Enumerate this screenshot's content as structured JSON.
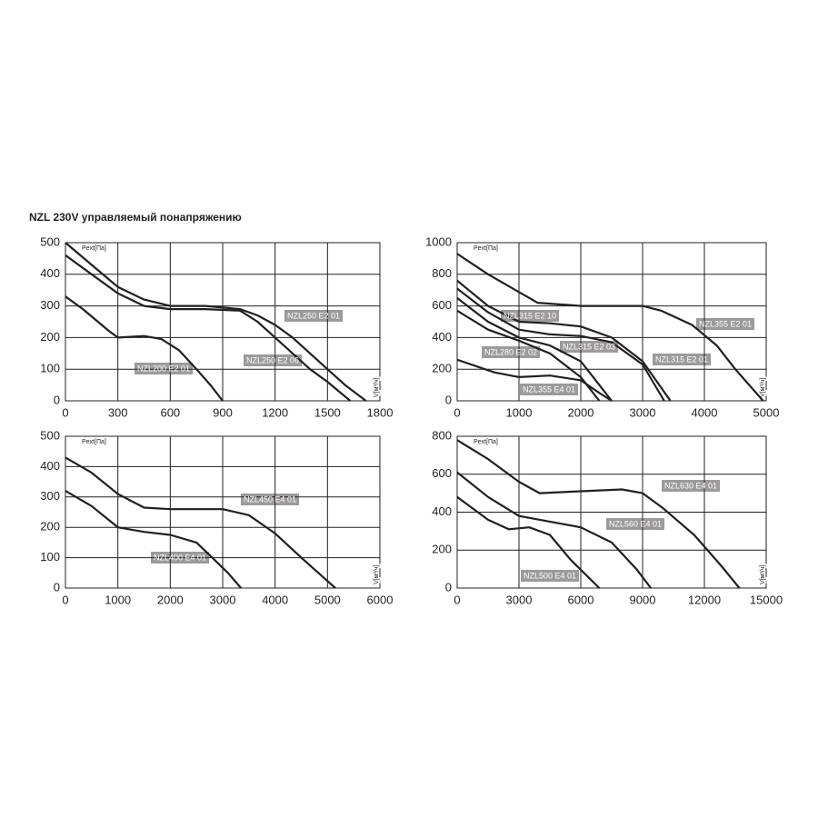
{
  "title": "NZL 230V управляемый понапряжению",
  "chart_data": [
    {
      "type": "line",
      "y_label": "Pext[Па]",
      "x_label": "V[м³/ч]",
      "grid": true,
      "xlim": [
        0,
        1800
      ],
      "ylim": [
        0,
        500
      ],
      "xticks": [
        0,
        300,
        600,
        900,
        1200,
        1500,
        1800
      ],
      "yticks": [
        0,
        100,
        200,
        300,
        400,
        500
      ],
      "series": [
        {
          "name": "NZL250 E2 01",
          "color": "#231f20",
          "x": [
            0,
            150,
            300,
            450,
            600,
            800,
            1000,
            1100,
            1200,
            1300,
            1400,
            1500,
            1600,
            1720
          ],
          "values": [
            500,
            430,
            360,
            320,
            300,
            300,
            290,
            270,
            240,
            200,
            150,
            100,
            50,
            0
          ]
        },
        {
          "name": "NZL250 E2 06",
          "color": "#231f20",
          "x": [
            0,
            150,
            300,
            450,
            600,
            800,
            1000,
            1100,
            1200,
            1300,
            1400,
            1500,
            1630
          ],
          "values": [
            460,
            400,
            340,
            300,
            290,
            290,
            285,
            250,
            200,
            150,
            100,
            60,
            0
          ]
        },
        {
          "name": "NZL200 E2 01",
          "color": "#231f20",
          "x": [
            0,
            100,
            250,
            300,
            450,
            550,
            650,
            750,
            830,
            900
          ],
          "values": [
            330,
            290,
            220,
            200,
            205,
            195,
            160,
            100,
            50,
            0
          ]
        }
      ]
    },
    {
      "type": "line",
      "y_label": "Pext[Па]",
      "x_label": "V[м³/ч]",
      "grid": true,
      "xlim": [
        0,
        5000
      ],
      "ylim": [
        0,
        1000
      ],
      "xticks": [
        0,
        1000,
        2000,
        3000,
        4000,
        5000
      ],
      "yticks": [
        0,
        200,
        400,
        600,
        800,
        1000
      ],
      "series": [
        {
          "name": "NZL355 E2 01",
          "color": "#231f20",
          "x": [
            0,
            500,
            1300,
            2000,
            3000,
            3300,
            3800,
            4200,
            4500,
            4950
          ],
          "values": [
            930,
            800,
            620,
            600,
            600,
            570,
            480,
            350,
            200,
            0
          ]
        },
        {
          "name": "NZL315 E2 10",
          "color": "#231f20",
          "x": [
            0,
            500,
            1000,
            1500,
            2000,
            2500,
            3000,
            3450
          ],
          "values": [
            760,
            600,
            500,
            490,
            470,
            400,
            250,
            0
          ]
        },
        {
          "name": "NZL315 E2 01",
          "color": "#231f20",
          "x": [
            0,
            500,
            1000,
            1500,
            2000,
            2500,
            3000,
            3350
          ],
          "values": [
            710,
            560,
            450,
            420,
            410,
            370,
            230,
            0
          ]
        },
        {
          "name": "NZL315 E2 03",
          "color": "#231f20",
          "x": [
            0,
            500,
            1000,
            1500,
            2000,
            2300,
            2500
          ],
          "values": [
            650,
            500,
            400,
            350,
            250,
            100,
            0
          ]
        },
        {
          "name": "NZL280 E2 02",
          "color": "#231f20",
          "x": [
            0,
            500,
            1000,
            1500,
            2000,
            2300
          ],
          "values": [
            570,
            450,
            380,
            300,
            150,
            0
          ]
        },
        {
          "name": "NZL355 E4 01",
          "color": "#231f20",
          "x": [
            0,
            600,
            1000,
            1500,
            2000,
            2300,
            2500
          ],
          "values": [
            260,
            180,
            150,
            160,
            130,
            50,
            0
          ]
        }
      ]
    },
    {
      "type": "line",
      "y_label": "Pext[Па]",
      "x_label": "V[м³/ч]",
      "grid": true,
      "xlim": [
        0,
        6000
      ],
      "ylim": [
        0,
        500
      ],
      "xticks": [
        0,
        1000,
        2000,
        3000,
        4000,
        5000,
        6000
      ],
      "yticks": [
        0,
        100,
        200,
        300,
        400,
        500
      ],
      "series": [
        {
          "name": "NZL450 E4 01",
          "color": "#231f20",
          "x": [
            0,
            500,
            1000,
            1500,
            2000,
            2500,
            3000,
            3500,
            4000,
            4500,
            5150
          ],
          "values": [
            430,
            380,
            310,
            265,
            260,
            260,
            260,
            240,
            180,
            100,
            0
          ]
        },
        {
          "name": "NZL400 E4 01",
          "color": "#231f20",
          "x": [
            0,
            500,
            1000,
            1500,
            2000,
            2500,
            2800,
            3100,
            3350
          ],
          "values": [
            320,
            270,
            200,
            185,
            175,
            150,
            100,
            50,
            0
          ]
        }
      ]
    },
    {
      "type": "line",
      "y_label": "Pext[Па]",
      "x_label": "V[м³/ч]",
      "grid": true,
      "xlim": [
        0,
        15000
      ],
      "ylim": [
        0,
        800
      ],
      "xticks": [
        0,
        3000,
        6000,
        9000,
        12000,
        15000
      ],
      "yticks": [
        0,
        200,
        400,
        600,
        800
      ],
      "series": [
        {
          "name": "NZL630 E4 01",
          "color": "#231f20",
          "x": [
            0,
            1500,
            3000,
            4000,
            6000,
            8000,
            9000,
            10000,
            11500,
            12800,
            13700
          ],
          "values": [
            780,
            680,
            560,
            500,
            510,
            520,
            500,
            420,
            280,
            120,
            0
          ]
        },
        {
          "name": "NZL560 E4 01",
          "color": "#231f20",
          "x": [
            0,
            1500,
            3000,
            4500,
            6000,
            7500,
            8700,
            9400
          ],
          "values": [
            610,
            480,
            380,
            350,
            320,
            240,
            100,
            0
          ]
        },
        {
          "name": "NZL500 E4 01",
          "color": "#231f20",
          "x": [
            0,
            1500,
            2500,
            3500,
            4500,
            5500,
            6900
          ],
          "values": [
            480,
            360,
            310,
            320,
            280,
            150,
            0
          ]
        }
      ]
    }
  ]
}
